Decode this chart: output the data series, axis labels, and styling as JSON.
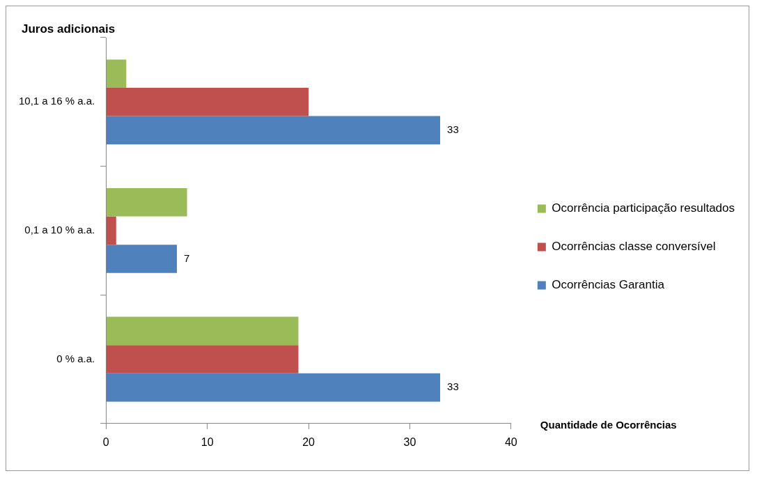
{
  "chart_data": {
    "type": "bar",
    "orientation": "horizontal",
    "ylabel": "Juros adicionais",
    "xlabel": "Quantidade de Ocorrências",
    "categories": [
      "10,1 a 16 % a.a.",
      "0,1 a 10 % a.a.",
      "0 % a.a."
    ],
    "series": [
      {
        "name": "Ocorrência participação resultados",
        "color": "#9bbb59",
        "values": [
          2,
          8,
          19
        ]
      },
      {
        "name": "Ocorrências classe conversível",
        "color": "#c0504d",
        "values": [
          20,
          1,
          19
        ]
      },
      {
        "name": "Ocorrências Garantia",
        "color": "#4f81bd",
        "values": [
          33,
          7,
          33
        ],
        "value_labels": [
          "33",
          "7",
          "33"
        ]
      }
    ],
    "xlim": [
      0,
      40
    ],
    "xticks": [
      0,
      10,
      20,
      30,
      40
    ],
    "grid": false,
    "legend": "right"
  }
}
